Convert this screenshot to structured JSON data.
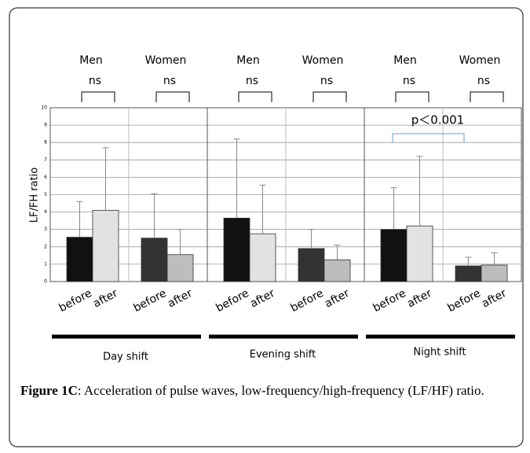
{
  "chart_data": {
    "type": "bar",
    "ylabel": "LF/FH ratio",
    "ylim": [
      0,
      10
    ],
    "yticks": [
      0,
      1,
      2,
      3,
      4,
      5,
      6,
      7,
      8,
      9,
      10
    ],
    "grid": true,
    "categories": [
      "before",
      "after",
      "before",
      "after",
      "before",
      "after",
      "before",
      "after",
      "before",
      "after",
      "before",
      "after"
    ],
    "values": [
      2.55,
      4.1,
      2.5,
      1.55,
      3.65,
      2.75,
      1.9,
      1.25,
      3.0,
      3.2,
      0.9,
      0.95
    ],
    "errors": [
      2.05,
      3.6,
      2.55,
      1.45,
      4.55,
      2.8,
      1.1,
      0.85,
      2.4,
      4.0,
      0.5,
      0.7
    ],
    "colors": [
      "#111111",
      "#e2e2e2",
      "#333333",
      "#bdbdbd",
      "#111111",
      "#e2e2e2",
      "#333333",
      "#bdbdbd",
      "#111111",
      "#e2e2e2",
      "#333333",
      "#bdbdbd"
    ],
    "groups": [
      {
        "label": "Men",
        "sig": "ns"
      },
      {
        "label": "Women",
        "sig": "ns"
      },
      {
        "label": "Men",
        "sig": "ns"
      },
      {
        "label": "Women",
        "sig": "ns"
      },
      {
        "label": "Men",
        "sig": "ns"
      },
      {
        "label": "Women",
        "sig": "ns"
      }
    ],
    "shifts": [
      "Day shift",
      "Evening shift",
      "Night shift"
    ],
    "annotation": "p＜0.001"
  },
  "caption": {
    "label": "Figure 1C",
    "text": ": Acceleration of pulse waves, low-frequency/high-frequency (LF/HF) ratio."
  }
}
